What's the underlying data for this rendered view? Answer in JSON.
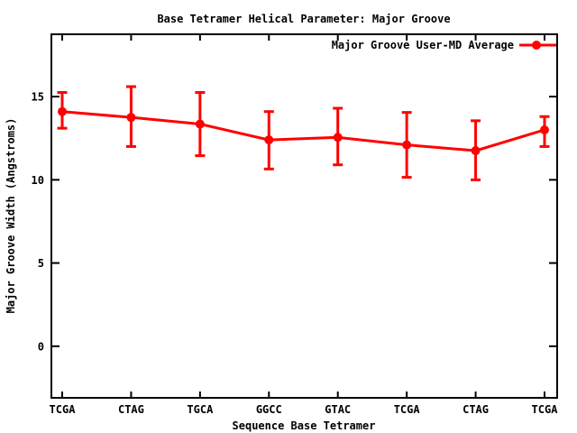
{
  "title": "Base Tetramer Helical Parameter: Major Groove",
  "legend": {
    "label": "Major Groove User-MD Average",
    "position": "top-right-inside"
  },
  "axes": {
    "x_label": "Sequence Base Tetramer",
    "y_label": "Major Groove Width (Angstroms)",
    "x_tick_labels": [
      "TCGA",
      "CTAG",
      "TGCA",
      "GGCC",
      "GTAC",
      "TCGA",
      "CTAG",
      "TCGA"
    ],
    "y_tick_labels": [
      "0",
      "5",
      "10",
      "15"
    ]
  },
  "colors": {
    "series": "#ff0000",
    "frame": "#000000",
    "text": "#000000",
    "background": "#ffffff"
  },
  "chart_data": {
    "type": "line",
    "title": "Base Tetramer Helical Parameter: Major Groove",
    "xlabel": "Sequence Base Tetramer",
    "ylabel": "Major Groove Width (Angstroms)",
    "categories": [
      "TCGA",
      "CTAG",
      "TGCA",
      "GGCC",
      "GTAC",
      "TCGA",
      "CTAG",
      "TCGA"
    ],
    "series": [
      {
        "name": "Major Groove User-MD Average",
        "values": [
          14.1,
          13.75,
          13.35,
          12.4,
          12.55,
          12.1,
          11.75,
          13.0
        ],
        "error_low": [
          13.1,
          12.0,
          11.45,
          10.65,
          10.9,
          10.15,
          10.0,
          12.0
        ],
        "error_high": [
          15.25,
          15.6,
          15.25,
          14.1,
          14.3,
          14.05,
          13.55,
          13.8
        ],
        "color": "#ff0000",
        "marker": "filled-circle",
        "error_bars": true
      }
    ],
    "yticks": [
      0,
      5,
      10,
      15
    ],
    "ylim": [
      -3.1,
      18.8
    ],
    "grid": false,
    "legend_position": "top-right-inside"
  }
}
